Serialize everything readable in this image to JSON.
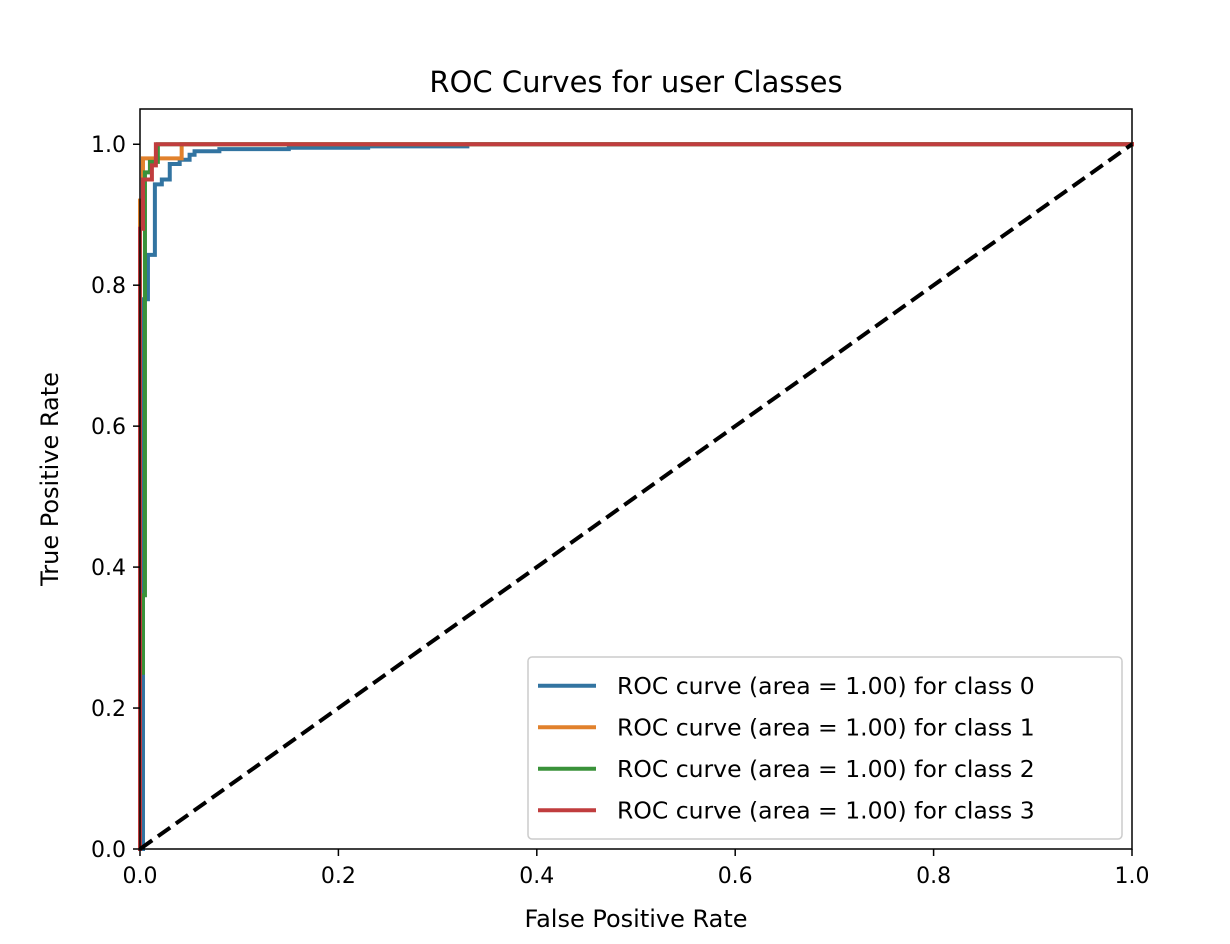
{
  "chart_data": {
    "type": "line",
    "title": "ROC Curves for user Classes",
    "xlabel": "False Positive Rate",
    "ylabel": "True Positive Rate",
    "xlim": [
      0.0,
      1.0
    ],
    "ylim": [
      0.0,
      1.05
    ],
    "x_ticks": [
      "0.0",
      "0.2",
      "0.4",
      "0.6",
      "0.8",
      "1.0"
    ],
    "y_ticks": [
      "0.0",
      "0.2",
      "0.4",
      "0.6",
      "0.8",
      "1.0"
    ],
    "grid": false,
    "legend_position": "lower right",
    "series": [
      {
        "name": "ROC curve (area = 1.00) for class 0",
        "color": "#3274a1",
        "points": [
          [
            0.0,
            0.0
          ],
          [
            0.003,
            0.0
          ],
          [
            0.003,
            0.78
          ],
          [
            0.008,
            0.78
          ],
          [
            0.008,
            0.843
          ],
          [
            0.015,
            0.843
          ],
          [
            0.015,
            0.943
          ],
          [
            0.022,
            0.943
          ],
          [
            0.022,
            0.95
          ],
          [
            0.03,
            0.95
          ],
          [
            0.03,
            0.972
          ],
          [
            0.04,
            0.972
          ],
          [
            0.04,
            0.978
          ],
          [
            0.05,
            0.978
          ],
          [
            0.05,
            0.985
          ],
          [
            0.055,
            0.985
          ],
          [
            0.055,
            0.99
          ],
          [
            0.08,
            0.99
          ],
          [
            0.08,
            0.993
          ],
          [
            0.15,
            0.993
          ],
          [
            0.15,
            0.995
          ],
          [
            0.23,
            0.995
          ],
          [
            0.23,
            0.997
          ],
          [
            0.33,
            0.997
          ],
          [
            0.33,
            1.0
          ],
          [
            1.0,
            1.0
          ]
        ]
      },
      {
        "name": "ROC curve (area = 1.00) for class 1",
        "color": "#e1812c",
        "points": [
          [
            0.0,
            0.0
          ],
          [
            0.0,
            0.92
          ],
          [
            0.003,
            0.92
          ],
          [
            0.003,
            0.98
          ],
          [
            0.025,
            0.98
          ],
          [
            0.025,
            0.98
          ],
          [
            0.042,
            0.98
          ],
          [
            0.042,
            1.0
          ],
          [
            1.0,
            1.0
          ]
        ]
      },
      {
        "name": "ROC curve (area = 1.00) for class 2",
        "color": "#3a923a",
        "points": [
          [
            0.0,
            0.0
          ],
          [
            0.0,
            0.25
          ],
          [
            0.003,
            0.25
          ],
          [
            0.003,
            0.36
          ],
          [
            0.005,
            0.36
          ],
          [
            0.005,
            0.96
          ],
          [
            0.01,
            0.96
          ],
          [
            0.01,
            0.975
          ],
          [
            0.018,
            0.975
          ],
          [
            0.018,
            1.0
          ],
          [
            1.0,
            1.0
          ]
        ]
      },
      {
        "name": "ROC curve (area = 1.00) for class 3",
        "color": "#c03d3e",
        "points": [
          [
            0.0,
            0.0
          ],
          [
            0.0,
            0.88
          ],
          [
            0.003,
            0.88
          ],
          [
            0.003,
            0.95
          ],
          [
            0.012,
            0.95
          ],
          [
            0.012,
            0.97
          ],
          [
            0.016,
            0.97
          ],
          [
            0.016,
            1.0
          ],
          [
            1.0,
            1.0
          ]
        ]
      }
    ],
    "reference_line": {
      "color": "#000000",
      "style": "dashed",
      "points": [
        [
          0.0,
          0.0
        ],
        [
          1.0,
          1.0
        ]
      ]
    }
  }
}
